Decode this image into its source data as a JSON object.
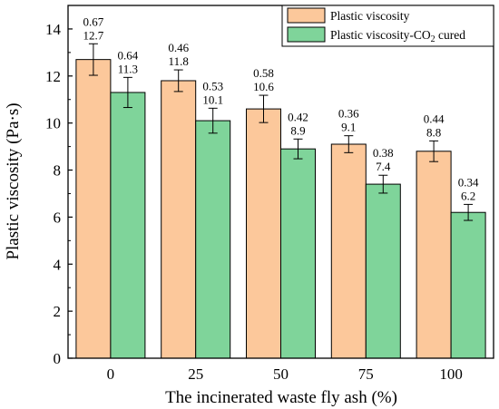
{
  "chart_data": {
    "type": "bar",
    "categories": [
      "0",
      "25",
      "50",
      "75",
      "100"
    ],
    "series": [
      {
        "name": "Plastic viscosity",
        "values": [
          12.7,
          11.8,
          10.6,
          9.1,
          8.8
        ],
        "errors": [
          0.67,
          0.46,
          0.58,
          0.36,
          0.44
        ],
        "value_labels": [
          "12.7",
          "11.8",
          "10.6",
          "9.1",
          "8.8"
        ],
        "error_labels": [
          "0.67",
          "0.46",
          "0.58",
          "0.36",
          "0.44"
        ],
        "color": "#FCC89B"
      },
      {
        "name_main": "Plastic viscosity-CO",
        "name_sub": "2",
        "name_tail": " cured",
        "values": [
          11.3,
          10.1,
          8.9,
          7.4,
          6.2
        ],
        "errors": [
          0.64,
          0.53,
          0.42,
          0.38,
          0.34
        ],
        "value_labels": [
          "11.3",
          "10.1",
          "8.9",
          "7.4",
          "6.2"
        ],
        "error_labels": [
          "0.64",
          "0.53",
          "0.42",
          "0.38",
          "0.34"
        ],
        "color": "#7FD49A"
      }
    ],
    "xlabel": "The incinerated waste fly ash (%)",
    "ylabel": "Plastic viscosity (Pa·s)",
    "ylim": [
      0,
      15
    ],
    "yticks": [
      "0",
      "2",
      "4",
      "6",
      "8",
      "10",
      "12",
      "14"
    ],
    "legend_position": "top-right",
    "grid": false
  }
}
